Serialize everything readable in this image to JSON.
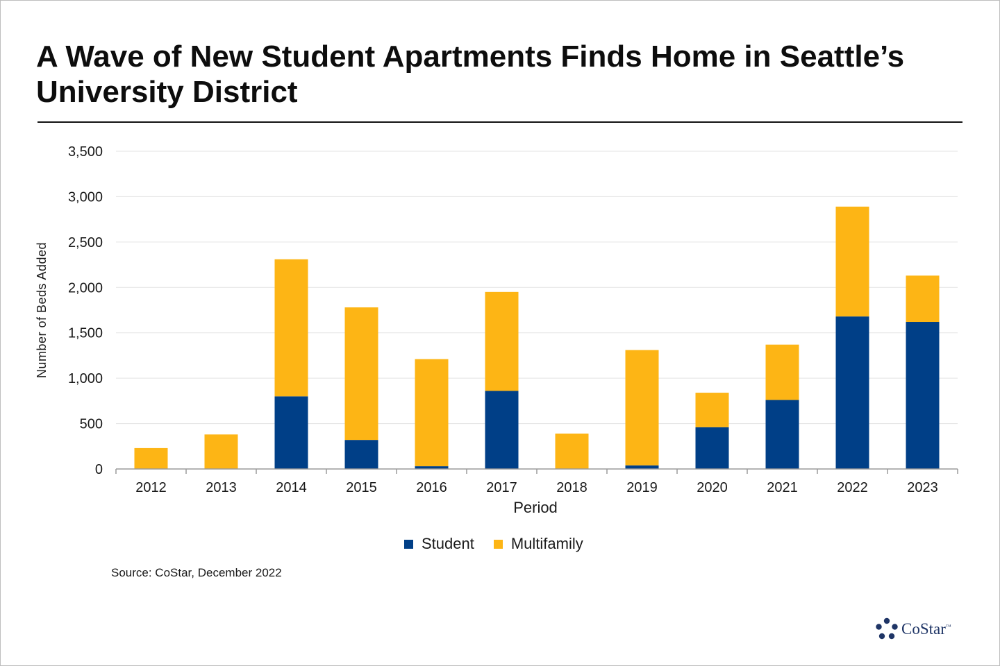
{
  "title": "A Wave of New Student Apartments Finds Home in Seattle’s University District",
  "source": "Source: CoStar, December 2022",
  "logo": {
    "text": "CoStar",
    "tm": "™",
    "icon": "costar-star-icon"
  },
  "colors": {
    "student": "#003f87",
    "multifamily": "#fdb515",
    "grid": "#e3e3e3",
    "axis": "#9a9a9a"
  },
  "chart_data": {
    "type": "bar",
    "stacked": true,
    "title": "A Wave of New Student Apartments Finds Home in Seattle’s University District",
    "xlabel": "Period",
    "ylabel": "Number of Beds Added",
    "ylim": [
      0,
      3500
    ],
    "yticks": [
      0,
      500,
      1000,
      1500,
      2000,
      2500,
      3000,
      3500
    ],
    "ytick_labels": [
      "0",
      "500",
      "1,000",
      "1,500",
      "2,000",
      "2,500",
      "3,000",
      "3,500"
    ],
    "grid": true,
    "legend_position": "bottom",
    "categories": [
      "2012",
      "2013",
      "2014",
      "2015",
      "2016",
      "2017",
      "2018",
      "2019",
      "2020",
      "2021",
      "2022",
      "2023"
    ],
    "series": [
      {
        "name": "Student",
        "color": "#003f87",
        "values": [
          0,
          0,
          800,
          320,
          30,
          860,
          0,
          40,
          460,
          760,
          1680,
          1620
        ]
      },
      {
        "name": "Multifamily",
        "color": "#fdb515",
        "values": [
          230,
          380,
          1510,
          1460,
          1180,
          1090,
          390,
          1270,
          380,
          610,
          1210,
          510
        ]
      }
    ]
  }
}
